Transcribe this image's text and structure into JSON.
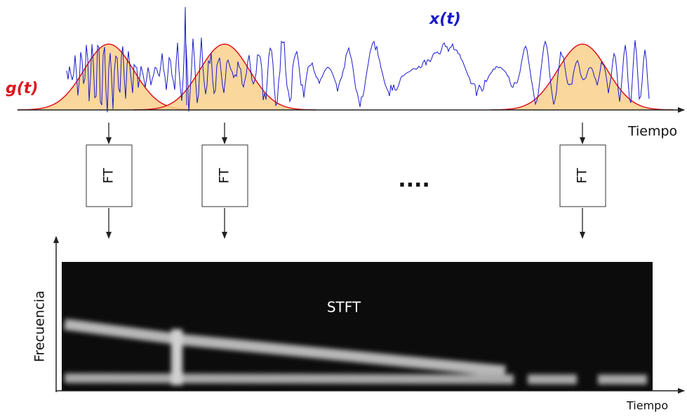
{
  "signal_label": "x(t)",
  "window_label": "g(t)",
  "time_axis_label": "Tiempo",
  "transforms": [
    {
      "label": "FT"
    },
    {
      "label": "FT"
    },
    {
      "label": "FT"
    }
  ],
  "ellipsis": "....",
  "spectrogram": {
    "title": "STFT",
    "y_axis_label": "Frecuencia",
    "x_axis_label": "Tiempo"
  }
}
